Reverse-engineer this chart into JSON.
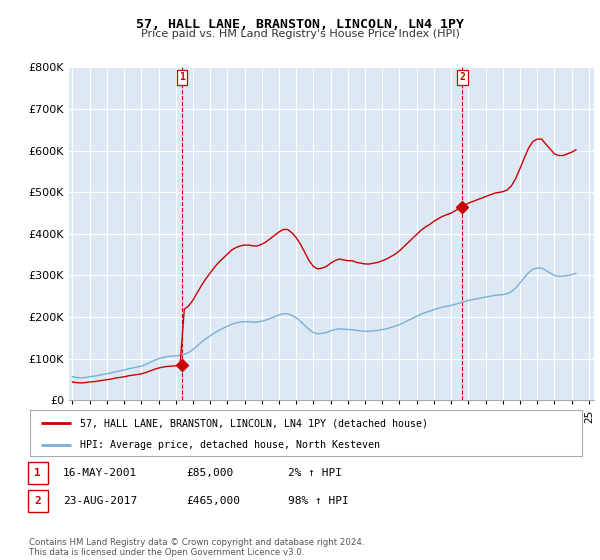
{
  "title": "57, HALL LANE, BRANSTON, LINCOLN, LN4 1PY",
  "subtitle": "Price paid vs. HM Land Registry's House Price Index (HPI)",
  "ylabel_ticks": [
    "£0",
    "£100K",
    "£200K",
    "£300K",
    "£400K",
    "£500K",
    "£600K",
    "£700K",
    "£800K"
  ],
  "ylim": [
    0,
    800000
  ],
  "xlim_start": 1994.8,
  "xlim_end": 2025.3,
  "background_color": "#ffffff",
  "plot_bg_color": "#dce9f5",
  "grid_color": "#ffffff",
  "sale_color": "#cc0000",
  "hpi_color": "#7ab0d4",
  "annotation_line_color": "#cc0000",
  "sale1_x": 2001.37,
  "sale1_y": 85000,
  "sale2_x": 2017.64,
  "sale2_y": 465000,
  "legend_label1": "57, HALL LANE, BRANSTON, LINCOLN, LN4 1PY (detached house)",
  "legend_label2": "HPI: Average price, detached house, North Kesteven",
  "table_row1": [
    "1",
    "16-MAY-2001",
    "£85,000",
    "2% ↑ HPI"
  ],
  "table_row2": [
    "2",
    "23-AUG-2017",
    "£465,000",
    "98% ↑ HPI"
  ],
  "footer": "Contains HM Land Registry data © Crown copyright and database right 2024.\nThis data is licensed under the Open Government Licence v3.0.",
  "hpi_data_x": [
    1995.0,
    1995.25,
    1995.5,
    1995.75,
    1996.0,
    1996.25,
    1996.5,
    1996.75,
    1997.0,
    1997.25,
    1997.5,
    1997.75,
    1998.0,
    1998.25,
    1998.5,
    1998.75,
    1999.0,
    1999.25,
    1999.5,
    1999.75,
    2000.0,
    2000.25,
    2000.5,
    2000.75,
    2001.0,
    2001.25,
    2001.5,
    2001.75,
    2002.0,
    2002.25,
    2002.5,
    2002.75,
    2003.0,
    2003.25,
    2003.5,
    2003.75,
    2004.0,
    2004.25,
    2004.5,
    2004.75,
    2005.0,
    2005.25,
    2005.5,
    2005.75,
    2006.0,
    2006.25,
    2006.5,
    2006.75,
    2007.0,
    2007.25,
    2007.5,
    2007.75,
    2008.0,
    2008.25,
    2008.5,
    2008.75,
    2009.0,
    2009.25,
    2009.5,
    2009.75,
    2010.0,
    2010.25,
    2010.5,
    2010.75,
    2011.0,
    2011.25,
    2011.5,
    2011.75,
    2012.0,
    2012.25,
    2012.5,
    2012.75,
    2013.0,
    2013.25,
    2013.5,
    2013.75,
    2014.0,
    2014.25,
    2014.5,
    2014.75,
    2015.0,
    2015.25,
    2015.5,
    2015.75,
    2016.0,
    2016.25,
    2016.5,
    2016.75,
    2017.0,
    2017.25,
    2017.5,
    2017.75,
    2018.0,
    2018.25,
    2018.5,
    2018.75,
    2019.0,
    2019.25,
    2019.5,
    2019.75,
    2020.0,
    2020.25,
    2020.5,
    2020.75,
    2021.0,
    2021.25,
    2021.5,
    2021.75,
    2022.0,
    2022.25,
    2022.5,
    2022.75,
    2023.0,
    2023.25,
    2023.5,
    2023.75,
    2024.0,
    2024.25
  ],
  "hpi_data_y": [
    57000,
    55000,
    54000,
    55000,
    57000,
    58000,
    60000,
    62000,
    64000,
    66000,
    69000,
    71000,
    73000,
    76000,
    78000,
    80000,
    82000,
    86000,
    91000,
    96000,
    100000,
    103000,
    105000,
    106000,
    107000,
    108000,
    111000,
    115000,
    122000,
    131000,
    140000,
    148000,
    155000,
    162000,
    168000,
    173000,
    178000,
    183000,
    186000,
    188000,
    189000,
    189000,
    188000,
    188000,
    190000,
    193000,
    197000,
    201000,
    205000,
    208000,
    208000,
    204000,
    198000,
    190000,
    180000,
    170000,
    163000,
    160000,
    161000,
    163000,
    167000,
    170000,
    172000,
    171000,
    170000,
    170000,
    168000,
    167000,
    166000,
    166000,
    167000,
    168000,
    170000,
    172000,
    175000,
    178000,
    182000,
    187000,
    192000,
    197000,
    202000,
    207000,
    211000,
    214000,
    218000,
    221000,
    224000,
    226000,
    228000,
    231000,
    234000,
    237000,
    240000,
    242000,
    244000,
    246000,
    248000,
    250000,
    252000,
    253000,
    254000,
    256000,
    261000,
    270000,
    282000,
    295000,
    307000,
    315000,
    318000,
    318000,
    312000,
    306000,
    300000,
    298000,
    298000,
    300000,
    302000,
    305000
  ]
}
